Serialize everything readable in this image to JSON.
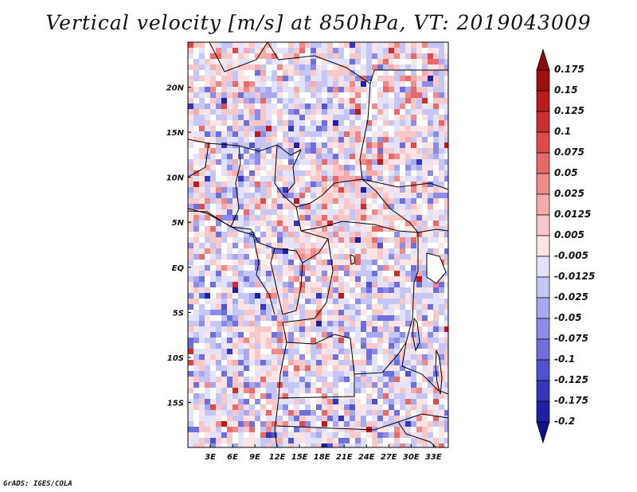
{
  "title": "Vertical velocity [m/s] at 850hPa, VT: 2019043009",
  "credit": "GrADS: IGES/COLA",
  "map": {
    "variable": "Vertical velocity",
    "units": "m/s",
    "level": "850hPa",
    "valid_time": "2019043009",
    "lon_range": [
      0,
      35
    ],
    "lat_range": [
      -20,
      25
    ],
    "lat_ticks": [
      {
        "value": 20,
        "label": "20N"
      },
      {
        "value": 15,
        "label": "15N"
      },
      {
        "value": 10,
        "label": "10N"
      },
      {
        "value": 5,
        "label": "5N"
      },
      {
        "value": 0,
        "label": "EQ"
      },
      {
        "value": -5,
        "label": "5S"
      },
      {
        "value": -10,
        "label": "10S"
      },
      {
        "value": -15,
        "label": "15S"
      }
    ],
    "lon_ticks": [
      {
        "value": 3,
        "label": "3E"
      },
      {
        "value": 6,
        "label": "6E"
      },
      {
        "value": 9,
        "label": "9E"
      },
      {
        "value": 12,
        "label": "12E"
      },
      {
        "value": 15,
        "label": "15E"
      },
      {
        "value": 18,
        "label": "18E"
      },
      {
        "value": 21,
        "label": "21E"
      },
      {
        "value": 24,
        "label": "24E"
      },
      {
        "value": 27,
        "label": "27E"
      },
      {
        "value": 30,
        "label": "30E"
      },
      {
        "value": 33,
        "label": "33E"
      }
    ]
  },
  "colorbar": {
    "levels": [
      {
        "label": "0.175",
        "color": "#a01010"
      },
      {
        "label": "0.15",
        "color": "#b81c1c"
      },
      {
        "label": "0.125",
        "color": "#cc2f2f"
      },
      {
        "label": "0.1",
        "color": "#dd4a4a"
      },
      {
        "label": "0.075",
        "color": "#e66a6a"
      },
      {
        "label": "0.05",
        "color": "#ee8a8a"
      },
      {
        "label": "0.025",
        "color": "#f4abab"
      },
      {
        "label": "0.0125",
        "color": "#f8c8c8"
      },
      {
        "label": "0.005",
        "color": "#fce4e4"
      },
      {
        "label": "-0.005",
        "color": "#ffffff"
      },
      {
        "label": "-0.0125",
        "color": "#e2e2fb"
      },
      {
        "label": "-0.025",
        "color": "#c6c6f4"
      },
      {
        "label": "-0.05",
        "color": "#a8a8ee"
      },
      {
        "label": "-0.075",
        "color": "#8c8ce6"
      },
      {
        "label": "-0.1",
        "color": "#6f6fdc"
      },
      {
        "label": "-0.125",
        "color": "#5252cf"
      },
      {
        "label": "-0.175",
        "color": "#3636bd"
      },
      {
        "label": "-0.2",
        "color": "#2020a6"
      }
    ],
    "over_color": "#8e0a0a",
    "under_color": "#10108a"
  }
}
